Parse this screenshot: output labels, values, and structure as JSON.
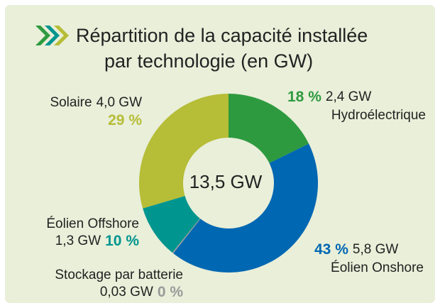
{
  "chart_data": {
    "type": "donut",
    "title": [
      "Répartition de la capacité installée",
      "par technologie (en GW)"
    ],
    "center_label": "13,5 GW",
    "categories": [
      "Hydroélectrique",
      "Éolien Onshore",
      "Stockage par batterie",
      "Éolien Offshore",
      "Solaire"
    ],
    "values": [
      2.4,
      5.8,
      0.03,
      1.3,
      4.0
    ],
    "value_labels": [
      "2,4 GW",
      "5,8 GW",
      "0,03 GW",
      "1,3 GW",
      "4,0 GW"
    ],
    "shares": [
      18,
      43,
      0,
      10,
      29
    ],
    "share_labels": [
      "18 %",
      "43 %",
      "0 %",
      "10 %",
      "29 %"
    ],
    "colors": [
      "#2e9a3f",
      "#0067b2",
      "#9a9a9a",
      "#00958f",
      "#b6bd36"
    ]
  }
}
